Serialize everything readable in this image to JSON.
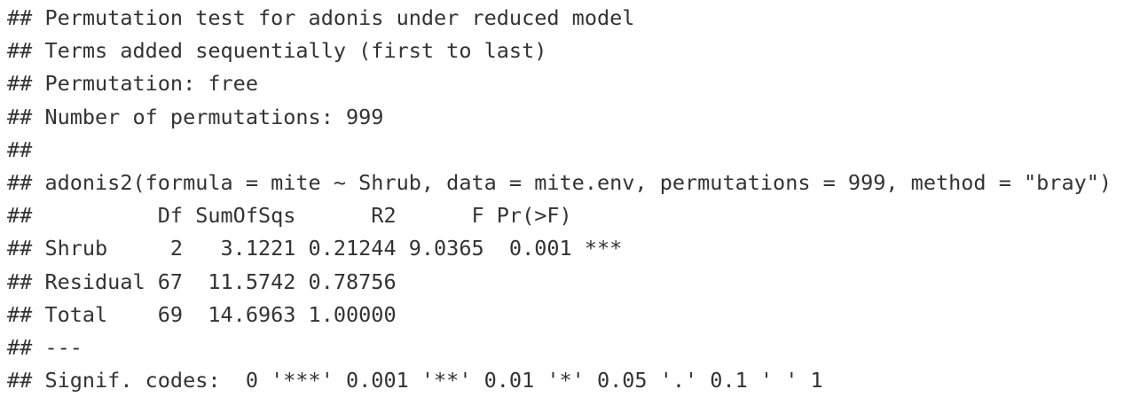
{
  "output": {
    "lines": [
      "## Permutation test for adonis under reduced model",
      "## Terms added sequentially (first to last)",
      "## Permutation: free",
      "## Number of permutations: 999",
      "##",
      "## adonis2(formula = mite ~ Shrub, data = mite.env, permutations = 999, method = \"bray\")",
      "##          Df SumOfSqs      R2      F Pr(>F)",
      "## Shrub     2   3.1221 0.21244 9.0365  0.001 ***",
      "## Residual 67  11.5742 0.78756",
      "## Total    69  14.6963 1.00000",
      "## ---",
      "## Signif. codes:  0 '***' 0.001 '**' 0.01 '*' 0.05 '.' 0.1 ' ' 1"
    ]
  },
  "colors": {
    "text": "#333333",
    "background": "#ffffff"
  }
}
